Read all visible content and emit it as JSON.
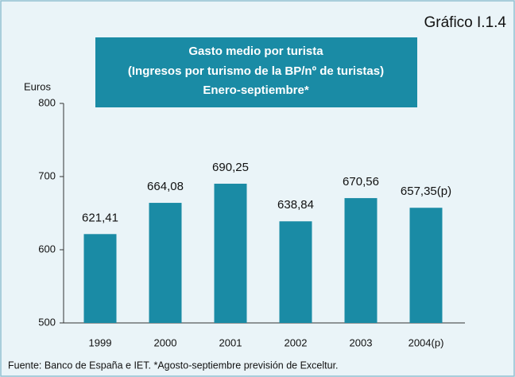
{
  "chart_data": {
    "type": "bar",
    "heading": "Gráfico I.1.4",
    "title": [
      "Gasto medio por turista",
      "(Ingresos por turismo de la BP/nº de turistas)",
      "Enero-septiembre*"
    ],
    "y_label": "Euros",
    "categories": [
      "1999",
      "2000",
      "2001",
      "2002",
      "2003",
      "2004(p)"
    ],
    "values": [
      621.41,
      664.08,
      690.25,
      638.84,
      670.56,
      657.35
    ],
    "value_labels": [
      "621,41",
      "664,08",
      "690,25",
      "638,84",
      "670,56",
      "657,35(p)"
    ],
    "color": "#1a8ba5",
    "ylim": [
      500,
      800
    ],
    "yticks": [
      500,
      600,
      700,
      800
    ],
    "footnote": "Fuente: Banco de España e IET. *Agosto-septiembre previsión de Exceltur."
  }
}
